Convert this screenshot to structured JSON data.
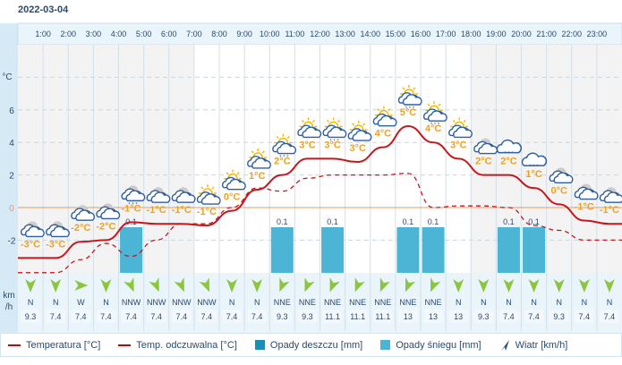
{
  "date": "2022-03-04",
  "unit_temp": "°C",
  "unit_wind": [
    "km",
    "/h"
  ],
  "colors": {
    "temp": "#c8161d",
    "feels": "#c8161d",
    "rain": "#1591b8",
    "snow": "#4cb5d6",
    "label": "#f0a020",
    "wind": "#8cc63f"
  },
  "chart_data": {
    "type": "line",
    "hours": [
      "1:00",
      "2:00",
      "3:00",
      "4:00",
      "5:00",
      "6:00",
      "7:00",
      "8:00",
      "9:00",
      "10:00",
      "11:00",
      "12:00",
      "13:00",
      "14:00",
      "15:00",
      "16:00",
      "17:00",
      "18:00",
      "19:00",
      "20:00",
      "21:00",
      "22:00",
      "23:00"
    ],
    "yticks": [
      6,
      4,
      2,
      0,
      -2
    ],
    "ylim": [
      -4.2,
      10
    ],
    "temperature": [
      -3.1,
      -3.1,
      -2.1,
      -2,
      -0.9,
      -1,
      -1,
      -1.1,
      -0.2,
      1.1,
      2,
      3,
      3,
      2.8,
      3.7,
      5,
      4,
      3,
      2,
      2,
      1.2,
      0.2,
      -0.8,
      -1
    ],
    "feels_like": [
      -4,
      -4,
      -3.2,
      -2.2,
      -3,
      -2,
      -1,
      -1,
      0,
      1.2,
      1,
      1.8,
      2,
      2,
      2,
      2.1,
      0,
      0.1,
      0.1,
      0,
      -1.1,
      -1.4,
      -2,
      -2
    ],
    "temp_labels": [
      "-3°C",
      "-3°C",
      "-2°C",
      "-2°C",
      "-1°C",
      "-1°C",
      "-1°C",
      "-1°C",
      "0°C",
      "1°C",
      "2°C",
      "3°C",
      "3°C",
      "3°C",
      "4°C",
      "5°C",
      "4°C",
      "3°C",
      "2°C",
      "2°C",
      "1°C",
      "0°C",
      "-1°C",
      "-1°C"
    ],
    "icons": [
      "moon-cloud",
      "moon-cloud",
      "moon-cloud",
      "moon-cloud",
      "moon-cloud-snow",
      "moon-cloud",
      "moon-cloud",
      "sun-cloud",
      "sun-cloud",
      "sun-cloud",
      "sun-cloud-snow",
      "sun-cloud",
      "sun-cloud-snow",
      "sun-cloud",
      "sun-cloud",
      "sun-cloud-snow",
      "sun-cloud-snow",
      "sun-cloud",
      "moon-cloud",
      "cloud-snow",
      "cloud-snow",
      "moon-cloud",
      "moon-cloud",
      "moon-cloud"
    ],
    "snow": [
      0,
      0,
      0,
      0,
      0.1,
      0,
      0,
      0,
      0,
      0,
      0.1,
      0,
      0.1,
      0,
      0,
      0.1,
      0.1,
      0,
      0,
      0.1,
      0.1,
      0,
      0,
      0
    ],
    "precip_labels": [
      "",
      "",
      "",
      "",
      "0.1",
      "",
      "",
      "",
      "",
      "",
      "0.1",
      "",
      "0.1",
      "",
      "",
      "0.1",
      "0.1",
      "",
      "",
      "0.1",
      "0.1",
      "",
      "",
      ""
    ],
    "night": [
      true,
      true,
      true,
      true,
      true,
      true,
      true,
      false,
      false,
      false,
      false,
      false,
      false,
      false,
      false,
      false,
      false,
      false,
      true,
      true,
      true,
      true,
      true,
      true
    ],
    "wind_dir": [
      "N",
      "N",
      "W",
      "N",
      "NNW",
      "NNW",
      "NNW",
      "NNW",
      "N",
      "N",
      "NNE",
      "NNE",
      "NNE",
      "NNE",
      "NNE",
      "NNE",
      "NNE",
      "N",
      "N",
      "N",
      "N",
      "N",
      "N",
      "N"
    ],
    "wind_deg": [
      0,
      0,
      270,
      0,
      337,
      337,
      337,
      337,
      0,
      0,
      22,
      22,
      22,
      22,
      22,
      22,
      22,
      0,
      0,
      0,
      0,
      0,
      0,
      0
    ],
    "wind_speed": [
      "9.3",
      "7.4",
      "7.4",
      "7.4",
      "7.4",
      "7.4",
      "7.4",
      "7.4",
      "7.4",
      "7.4",
      "9.3",
      "9.3",
      "11.1",
      "11.1",
      "11.1",
      "13",
      "13",
      "13",
      "9.3",
      "7.4",
      "7.4",
      "9.3",
      "7.4",
      "7.4"
    ]
  },
  "legend": {
    "temp": "Temperatura [°C]",
    "feels": "Temp. odczuwalna [°C]",
    "rain": "Opady deszczu [mm]",
    "snow": "Opady śniegu [mm]",
    "wind": "Wiatr [km/h]"
  }
}
